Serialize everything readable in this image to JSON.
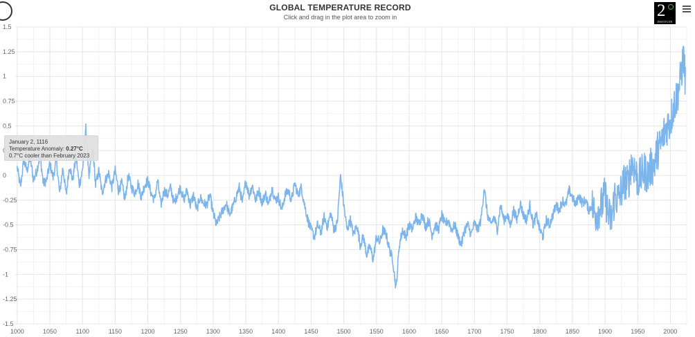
{
  "header": {
    "title": "GLOBAL TEMPERATURE RECORD",
    "subtitle": "Click and drag in the plot area to zoom in"
  },
  "logo": {
    "number": "2",
    "word": "INSTITUTE"
  },
  "icons": {
    "history": "clock-icon",
    "menu": "hamburger-menu-icon"
  },
  "tooltip": {
    "date": "January 2, 1116",
    "label": "Temperature Anomaly: ",
    "value": "0.27°C",
    "comparison": "0.7°C cooler than February 2023"
  },
  "colors": {
    "line": "#7cb5ec",
    "grid": "#e6e6e6",
    "axis_text": "#666666"
  },
  "chart_data": {
    "type": "line",
    "title": "GLOBAL TEMPERATURE RECORD",
    "subtitle": "Click and drag in the plot area to zoom in",
    "xlim": [
      997,
      2025
    ],
    "ylim": [
      -1.5,
      1.5
    ],
    "x_ticks": [
      1000,
      1050,
      1100,
      1150,
      1200,
      1250,
      1300,
      1350,
      1400,
      1450,
      1500,
      1550,
      1600,
      1650,
      1700,
      1750,
      1800,
      1850,
      1900,
      1950,
      2000
    ],
    "y_ticks": [
      -1.5,
      -1.25,
      -1,
      -0.75,
      -0.5,
      -0.25,
      0,
      0.25,
      0.5,
      0.75,
      1,
      1.25,
      1.5
    ],
    "y_tick_labels": [
      "-1.5",
      "-1.25",
      "-1",
      "-0.75",
      "-0.5",
      "-0.25",
      "0",
      "0.25",
      "0.5",
      "0.75",
      "1",
      "1.25",
      "1.5"
    ],
    "grid": true,
    "legend": "none",
    "series": [
      {
        "points": [
          [
            1000,
            0.08
          ],
          [
            1005,
            -0.12
          ],
          [
            1010,
            0.15
          ],
          [
            1015,
            0.05
          ],
          [
            1020,
            0.18
          ],
          [
            1025,
            -0.05
          ],
          [
            1030,
            0.05
          ],
          [
            1035,
            0.2
          ],
          [
            1040,
            -0.08
          ],
          [
            1045,
            -0.05
          ],
          [
            1050,
            0.12
          ],
          [
            1055,
            -0.02
          ],
          [
            1060,
            0.15
          ],
          [
            1065,
            -0.18
          ],
          [
            1070,
            0.08
          ],
          [
            1075,
            -0.2
          ],
          [
            1080,
            0.1
          ],
          [
            1085,
            -0.05
          ],
          [
            1090,
            0.2
          ],
          [
            1095,
            -0.1
          ],
          [
            1100,
            0.05
          ],
          [
            1105,
            0.48
          ],
          [
            1110,
            0.0
          ],
          [
            1116,
            0.27
          ],
          [
            1120,
            -0.1
          ],
          [
            1125,
            0.05
          ],
          [
            1130,
            -0.18
          ],
          [
            1135,
            -0.05
          ],
          [
            1140,
            0.02
          ],
          [
            1145,
            -0.12
          ],
          [
            1150,
            0.05
          ],
          [
            1155,
            -0.15
          ],
          [
            1160,
            -0.08
          ],
          [
            1165,
            -0.25
          ],
          [
            1170,
            0.0
          ],
          [
            1175,
            -0.12
          ],
          [
            1180,
            -0.18
          ],
          [
            1185,
            -0.08
          ],
          [
            1190,
            -0.22
          ],
          [
            1195,
            -0.1
          ],
          [
            1200,
            -0.05
          ],
          [
            1205,
            -0.18
          ],
          [
            1210,
            -0.25
          ],
          [
            1215,
            -0.05
          ],
          [
            1220,
            -0.3
          ],
          [
            1225,
            -0.15
          ],
          [
            1230,
            -0.2
          ],
          [
            1235,
            -0.12
          ],
          [
            1240,
            -0.28
          ],
          [
            1245,
            -0.2
          ],
          [
            1250,
            -0.12
          ],
          [
            1255,
            -0.25
          ],
          [
            1260,
            -0.15
          ],
          [
            1265,
            -0.3
          ],
          [
            1270,
            -0.2
          ],
          [
            1275,
            -0.35
          ],
          [
            1280,
            -0.22
          ],
          [
            1285,
            -0.28
          ],
          [
            1290,
            -0.3
          ],
          [
            1295,
            -0.2
          ],
          [
            1300,
            -0.38
          ],
          [
            1305,
            -0.5
          ],
          [
            1310,
            -0.42
          ],
          [
            1315,
            -0.35
          ],
          [
            1320,
            -0.28
          ],
          [
            1325,
            -0.4
          ],
          [
            1330,
            -0.32
          ],
          [
            1335,
            -0.22
          ],
          [
            1340,
            -0.12
          ],
          [
            1345,
            -0.28
          ],
          [
            1350,
            -0.05
          ],
          [
            1355,
            -0.2
          ],
          [
            1360,
            -0.1
          ],
          [
            1365,
            -0.25
          ],
          [
            1370,
            -0.15
          ],
          [
            1375,
            -0.28
          ],
          [
            1380,
            -0.18
          ],
          [
            1385,
            -0.3
          ],
          [
            1390,
            -0.12
          ],
          [
            1395,
            -0.25
          ],
          [
            1400,
            -0.22
          ],
          [
            1405,
            -0.35
          ],
          [
            1410,
            -0.2
          ],
          [
            1415,
            -0.15
          ],
          [
            1420,
            -0.25
          ],
          [
            1425,
            -0.08
          ],
          [
            1430,
            -0.2
          ],
          [
            1435,
            -0.12
          ],
          [
            1440,
            -0.3
          ],
          [
            1445,
            -0.45
          ],
          [
            1450,
            -0.55
          ],
          [
            1455,
            -0.62
          ],
          [
            1460,
            -0.5
          ],
          [
            1465,
            -0.58
          ],
          [
            1470,
            -0.42
          ],
          [
            1475,
            -0.52
          ],
          [
            1480,
            -0.38
          ],
          [
            1485,
            -0.55
          ],
          [
            1490,
            -0.48
          ],
          [
            1495,
            0.0
          ],
          [
            1500,
            -0.3
          ],
          [
            1505,
            -0.55
          ],
          [
            1510,
            -0.45
          ],
          [
            1515,
            -0.6
          ],
          [
            1520,
            -0.5
          ],
          [
            1525,
            -0.7
          ],
          [
            1530,
            -0.62
          ],
          [
            1535,
            -0.8
          ],
          [
            1540,
            -0.72
          ],
          [
            1545,
            -0.85
          ],
          [
            1550,
            -0.62
          ],
          [
            1555,
            -0.68
          ],
          [
            1560,
            -0.55
          ],
          [
            1565,
            -0.6
          ],
          [
            1570,
            -0.75
          ],
          [
            1575,
            -0.85
          ],
          [
            1580,
            -1.15
          ],
          [
            1585,
            -0.7
          ],
          [
            1590,
            -0.55
          ],
          [
            1595,
            -0.62
          ],
          [
            1600,
            -0.5
          ],
          [
            1605,
            -0.55
          ],
          [
            1610,
            -0.42
          ],
          [
            1615,
            -0.5
          ],
          [
            1620,
            -0.38
          ],
          [
            1625,
            -0.52
          ],
          [
            1630,
            -0.45
          ],
          [
            1635,
            -0.6
          ],
          [
            1640,
            -0.5
          ],
          [
            1645,
            -0.55
          ],
          [
            1650,
            -0.4
          ],
          [
            1655,
            -0.5
          ],
          [
            1660,
            -0.45
          ],
          [
            1665,
            -0.55
          ],
          [
            1670,
            -0.5
          ],
          [
            1675,
            -0.62
          ],
          [
            1680,
            -0.7
          ],
          [
            1685,
            -0.55
          ],
          [
            1690,
            -0.5
          ],
          [
            1695,
            -0.6
          ],
          [
            1700,
            -0.48
          ],
          [
            1705,
            -0.55
          ],
          [
            1710,
            -0.45
          ],
          [
            1715,
            -0.12
          ],
          [
            1720,
            -0.4
          ],
          [
            1725,
            -0.5
          ],
          [
            1730,
            -0.42
          ],
          [
            1735,
            -0.55
          ],
          [
            1740,
            -0.3
          ],
          [
            1745,
            -0.45
          ],
          [
            1750,
            -0.4
          ],
          [
            1755,
            -0.5
          ],
          [
            1760,
            -0.35
          ],
          [
            1765,
            -0.45
          ],
          [
            1770,
            -0.28
          ],
          [
            1775,
            -0.4
          ],
          [
            1780,
            -0.45
          ],
          [
            1785,
            -0.3
          ],
          [
            1790,
            -0.5
          ],
          [
            1795,
            -0.4
          ],
          [
            1800,
            -0.55
          ],
          [
            1805,
            -0.62
          ],
          [
            1810,
            -0.45
          ],
          [
            1815,
            -0.5
          ],
          [
            1820,
            -0.4
          ],
          [
            1825,
            -0.3
          ],
          [
            1830,
            -0.35
          ],
          [
            1835,
            -0.25
          ],
          [
            1840,
            -0.3
          ],
          [
            1845,
            -0.15
          ],
          [
            1850,
            -0.22
          ],
          [
            1855,
            -0.3
          ],
          [
            1860,
            -0.2
          ],
          [
            1865,
            -0.28
          ],
          [
            1870,
            -0.25
          ],
          [
            1875,
            -0.35
          ],
          [
            1880,
            -0.3
          ],
          [
            1885,
            -0.4
          ],
          [
            1890,
            -0.35
          ],
          [
            1895,
            -0.3
          ],
          [
            1900,
            -0.2
          ],
          [
            1905,
            -0.4
          ],
          [
            1910,
            -0.45
          ],
          [
            1915,
            -0.2
          ],
          [
            1920,
            -0.25
          ],
          [
            1925,
            -0.15
          ],
          [
            1930,
            -0.05
          ],
          [
            1935,
            -0.1
          ],
          [
            1940,
            0.12
          ],
          [
            1945,
            0.08
          ],
          [
            1950,
            -0.05
          ],
          [
            1955,
            0.0
          ],
          [
            1960,
            0.05
          ],
          [
            1965,
            0.0
          ],
          [
            1970,
            0.08
          ],
          [
            1975,
            0.1
          ],
          [
            1980,
            0.25
          ],
          [
            1985,
            0.3
          ],
          [
            1990,
            0.42
          ],
          [
            1995,
            0.5
          ],
          [
            2000,
            0.55
          ],
          [
            2005,
            0.7
          ],
          [
            2010,
            0.8
          ],
          [
            2015,
            0.95
          ],
          [
            2020,
            1.2
          ],
          [
            2023,
            0.95
          ]
        ]
      }
    ]
  }
}
